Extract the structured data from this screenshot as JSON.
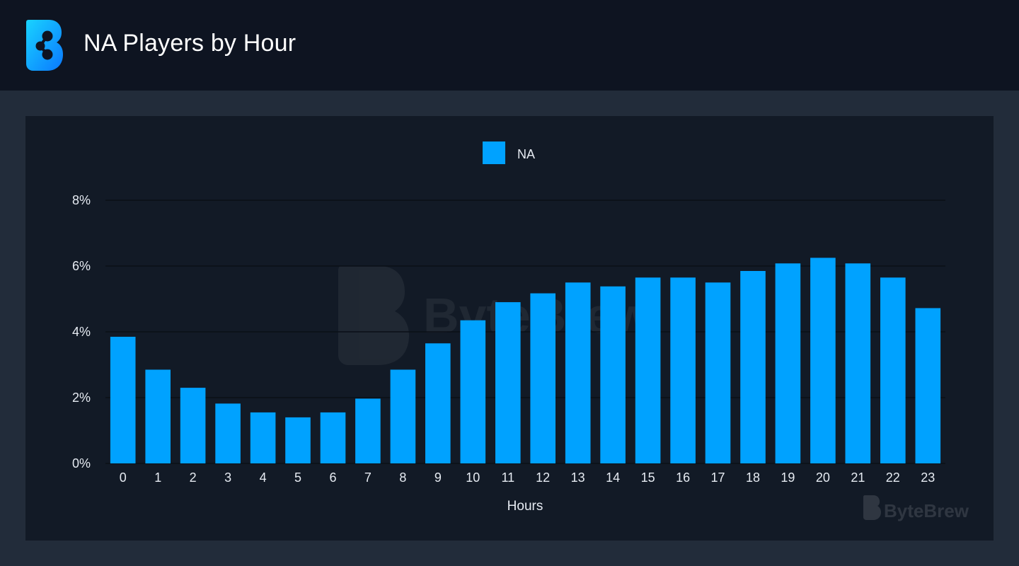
{
  "header": {
    "title": "NA Players by Hour",
    "logo_icon": "bytebrew-logo-icon"
  },
  "colors": {
    "bar": "#00a2ff",
    "header_bg": "#0e1421",
    "panel_bg": "#121a26",
    "page_bg": "#222c3a"
  },
  "watermark": {
    "brand": "ByteBrew"
  },
  "chart_data": {
    "type": "bar",
    "categories": [
      "0",
      "1",
      "2",
      "3",
      "4",
      "5",
      "6",
      "7",
      "8",
      "9",
      "10",
      "11",
      "12",
      "13",
      "14",
      "15",
      "16",
      "17",
      "18",
      "19",
      "20",
      "21",
      "22",
      "23"
    ],
    "series": [
      {
        "name": "NA",
        "color": "#00a2ff",
        "values": [
          3.85,
          2.85,
          2.3,
          1.82,
          1.55,
          1.4,
          1.55,
          1.97,
          2.85,
          3.65,
          4.35,
          4.9,
          5.17,
          5.5,
          5.38,
          5.65,
          5.65,
          5.5,
          5.85,
          6.08,
          6.25,
          6.08,
          5.65,
          4.72
        ]
      }
    ],
    "xlabel": "Hours",
    "ylabel": "",
    "ylim": [
      0,
      8
    ],
    "yticks": [
      0,
      2,
      4,
      6,
      8
    ],
    "ytick_labels": [
      "0%",
      "2%",
      "4%",
      "6%",
      "8%"
    ],
    "grid": true,
    "legend": "top-center"
  }
}
